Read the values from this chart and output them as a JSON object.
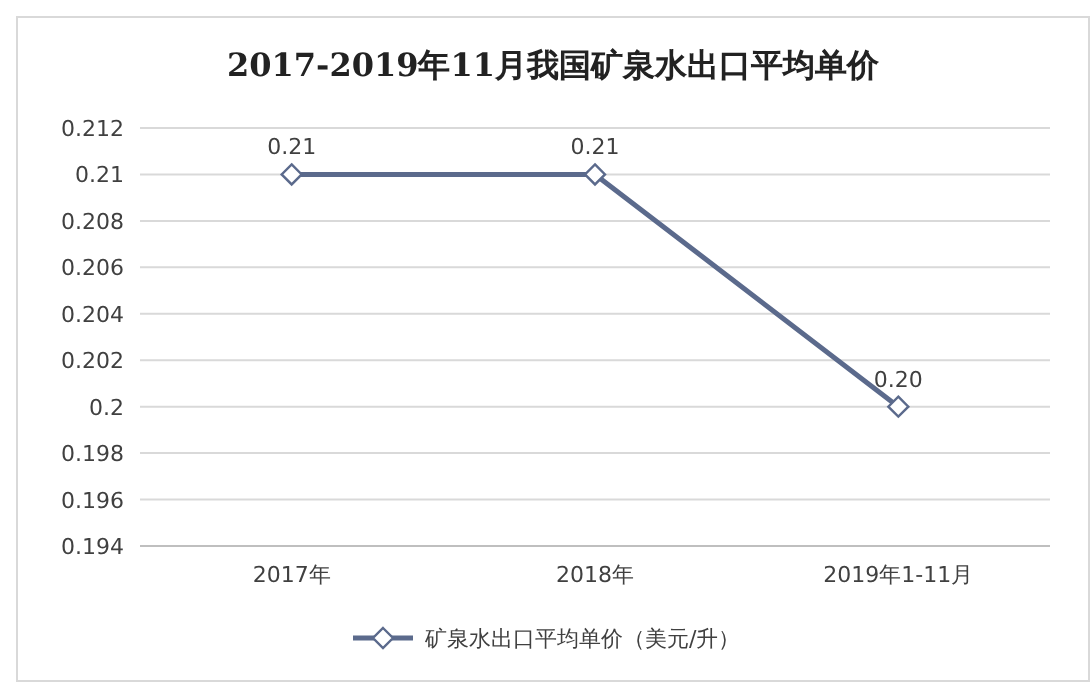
{
  "chart_data": {
    "type": "line",
    "title": "2017-2019年11月我国矿泉水出口平均单价",
    "categories": [
      "2017年",
      "2018年",
      "2019年1-11月"
    ],
    "series": [
      {
        "name": "矿泉水出口平均单价（美元/升）",
        "color": "#5b6a8c",
        "values": [
          0.21,
          0.21,
          0.2
        ],
        "value_labels": [
          "0.21",
          "0.21",
          "0.20"
        ]
      }
    ],
    "ylim": [
      0.194,
      0.212
    ],
    "yticks": [
      0.194,
      0.196,
      0.198,
      0.2,
      0.202,
      0.204,
      0.206,
      0.208,
      0.21,
      0.212
    ],
    "grid": "y",
    "legend": "bottom",
    "marker": "diamond",
    "line_style": "solid"
  }
}
